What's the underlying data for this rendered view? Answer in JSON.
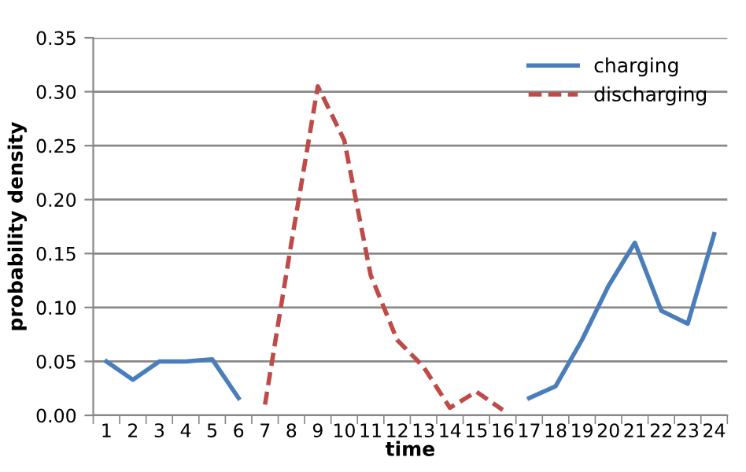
{
  "chart_data": {
    "type": "line",
    "xlabel": "time",
    "ylabel": "probability density",
    "categories": [
      "1",
      "2",
      "3",
      "4",
      "5",
      "6",
      "7",
      "8",
      "9",
      "10",
      "11",
      "12",
      "13",
      "14",
      "15",
      "16",
      "17",
      "18",
      "19",
      "20",
      "21",
      "22",
      "23",
      "24"
    ],
    "series": [
      {
        "name": "charging",
        "color": "#4a7ebb",
        "line_style": "solid",
        "values": [
          0.05,
          0.033,
          0.05,
          0.05,
          0.052,
          0.016,
          null,
          null,
          null,
          null,
          null,
          null,
          null,
          null,
          null,
          null,
          0.016,
          0.027,
          0.07,
          0.12,
          0.16,
          0.097,
          0.085,
          0.168
        ]
      },
      {
        "name": "discharging",
        "color": "#be4b48",
        "line_style": "dashed",
        "values": [
          null,
          null,
          null,
          null,
          null,
          null,
          0.01,
          0.16,
          0.305,
          0.255,
          0.13,
          0.07,
          0.045,
          0.007,
          0.022,
          0.005,
          null,
          null,
          null,
          null,
          null,
          null,
          null,
          null
        ]
      }
    ],
    "ylim": [
      0,
      0.35
    ],
    "yticks": [
      {
        "value": 0,
        "label": "0.00"
      },
      {
        "value": 0.05,
        "label": "0.05"
      },
      {
        "value": 0.1,
        "label": "0.10"
      },
      {
        "value": 0.15,
        "label": "0.15"
      },
      {
        "value": 0.2,
        "label": "0.20"
      },
      {
        "value": 0.25,
        "label": "0.25"
      },
      {
        "value": 0.3,
        "label": "0.30"
      },
      {
        "value": 0.35,
        "label": "0.35"
      }
    ],
    "grid": "y",
    "legend": "top right",
    "marker": "none"
  }
}
